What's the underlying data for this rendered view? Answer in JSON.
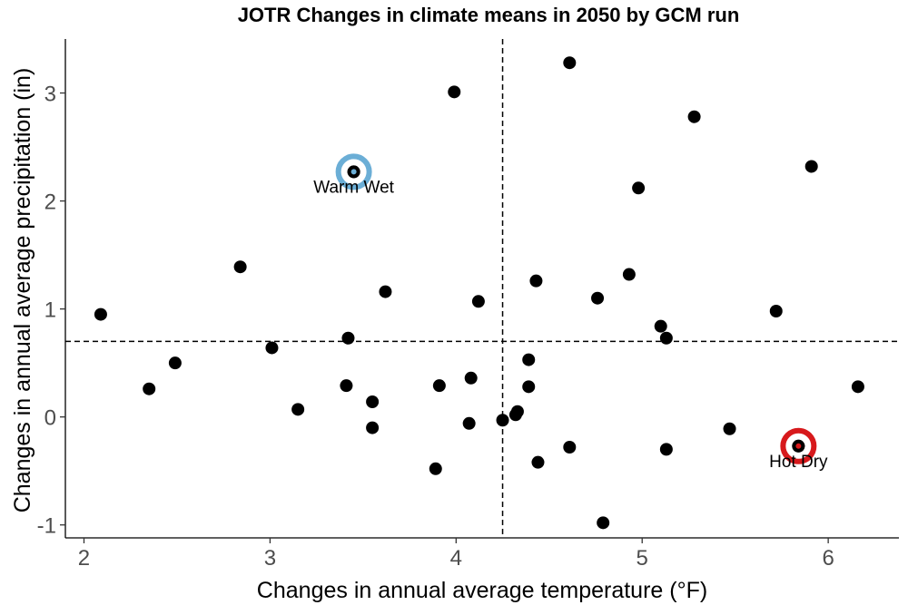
{
  "chart_data": {
    "type": "scatter",
    "title": "JOTR Changes in climate means in 2050 by GCM run",
    "xlabel": "Changes in annual average temperature (°F)",
    "ylabel": "Changes in annual average precipitation (in)",
    "xlim": [
      1.9,
      6.38
    ],
    "ylim": [
      -1.12,
      3.5
    ],
    "xticks": [
      2,
      3,
      4,
      5,
      6
    ],
    "yticks": [
      -1,
      0,
      1,
      2,
      3
    ],
    "grid": false,
    "reference_lines": {
      "x": 4.25,
      "y": 0.7
    },
    "points": [
      {
        "x": 2.09,
        "y": 0.95
      },
      {
        "x": 2.35,
        "y": 0.26
      },
      {
        "x": 2.49,
        "y": 0.5
      },
      {
        "x": 2.84,
        "y": 1.39
      },
      {
        "x": 3.01,
        "y": 0.64
      },
      {
        "x": 3.15,
        "y": 0.07
      },
      {
        "x": 3.42,
        "y": 0.73
      },
      {
        "x": 3.41,
        "y": 0.29
      },
      {
        "x": 3.55,
        "y": 0.14
      },
      {
        "x": 3.55,
        "y": -0.1
      },
      {
        "x": 3.62,
        "y": 1.16
      },
      {
        "x": 3.45,
        "y": 2.27
      },
      {
        "x": 3.89,
        "y": -0.48
      },
      {
        "x": 3.91,
        "y": 0.29
      },
      {
        "x": 3.99,
        "y": 3.01
      },
      {
        "x": 4.07,
        "y": -0.06
      },
      {
        "x": 4.08,
        "y": 0.36
      },
      {
        "x": 4.12,
        "y": 1.07
      },
      {
        "x": 4.25,
        "y": -0.03
      },
      {
        "x": 4.32,
        "y": 0.02
      },
      {
        "x": 4.33,
        "y": 0.05
      },
      {
        "x": 4.39,
        "y": 0.53
      },
      {
        "x": 4.39,
        "y": 0.28
      },
      {
        "x": 4.43,
        "y": 1.26
      },
      {
        "x": 4.44,
        "y": -0.42
      },
      {
        "x": 4.61,
        "y": 3.28
      },
      {
        "x": 4.61,
        "y": -0.28
      },
      {
        "x": 4.76,
        "y": 1.1
      },
      {
        "x": 4.79,
        "y": -0.98
      },
      {
        "x": 4.93,
        "y": 1.32
      },
      {
        "x": 4.98,
        "y": 2.12
      },
      {
        "x": 5.1,
        "y": 0.84
      },
      {
        "x": 5.13,
        "y": 0.73
      },
      {
        "x": 5.13,
        "y": -0.3
      },
      {
        "x": 5.28,
        "y": 2.78
      },
      {
        "x": 5.47,
        "y": -0.11
      },
      {
        "x": 5.72,
        "y": 0.98
      },
      {
        "x": 5.84,
        "y": -0.27
      },
      {
        "x": 5.91,
        "y": 2.32
      },
      {
        "x": 6.16,
        "y": 0.28
      }
    ],
    "highlights": [
      {
        "label": "Warm Wet",
        "x": 3.45,
        "y": 2.27,
        "color": "#6baed6"
      },
      {
        "label": "Hot Dry",
        "x": 5.84,
        "y": -0.27,
        "color": "#d7191c"
      }
    ]
  }
}
